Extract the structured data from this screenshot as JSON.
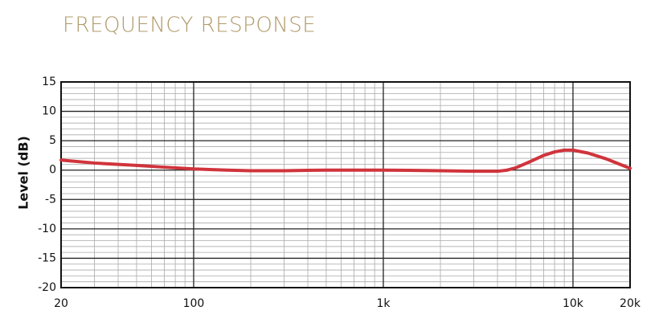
{
  "chart_data": {
    "type": "line",
    "title": "FREQUENCY RESPONSE",
    "ylabel": "Level (dB)",
    "xscale": "log",
    "x": [
      20,
      30,
      50,
      70,
      100,
      150,
      200,
      300,
      500,
      1000,
      2000,
      3000,
      4000,
      4500,
      5000,
      6000,
      7000,
      8000,
      9000,
      10000,
      12000,
      15000,
      20000
    ],
    "series": [
      {
        "name": "Level",
        "color": "#d0343c",
        "values": [
          1.7,
          1.2,
          0.8,
          0.5,
          0.2,
          0.0,
          -0.1,
          -0.1,
          0.0,
          0.0,
          -0.1,
          -0.2,
          -0.2,
          0.0,
          0.4,
          1.5,
          2.5,
          3.1,
          3.4,
          3.4,
          2.9,
          1.9,
          0.3
        ]
      }
    ],
    "xlim": [
      20,
      20000
    ],
    "xticks": [
      20,
      100,
      {
        "value": 1000,
        "label": "1k"
      },
      {
        "value": 10000,
        "label": "10k"
      },
      {
        "value": 20000,
        "label": "20k"
      }
    ],
    "xminor_ticks": [
      30,
      40,
      50,
      60,
      70,
      80,
      90,
      200,
      300,
      400,
      500,
      600,
      700,
      800,
      900,
      2000,
      3000,
      4000,
      5000,
      6000,
      7000,
      8000,
      9000
    ],
    "ylim": [
      -20,
      15
    ],
    "yticks": [
      -20,
      -15,
      -10,
      -5,
      0,
      5,
      10,
      15
    ],
    "yminor_ticks": [
      -19,
      -18,
      -17,
      -16,
      -14,
      -13,
      -12,
      -11,
      -9,
      -8,
      -7,
      -6,
      -4,
      -3,
      -2,
      -1,
      1,
      2,
      3,
      4,
      6,
      7,
      8,
      9,
      11,
      12,
      13,
      14
    ],
    "grid": true
  }
}
